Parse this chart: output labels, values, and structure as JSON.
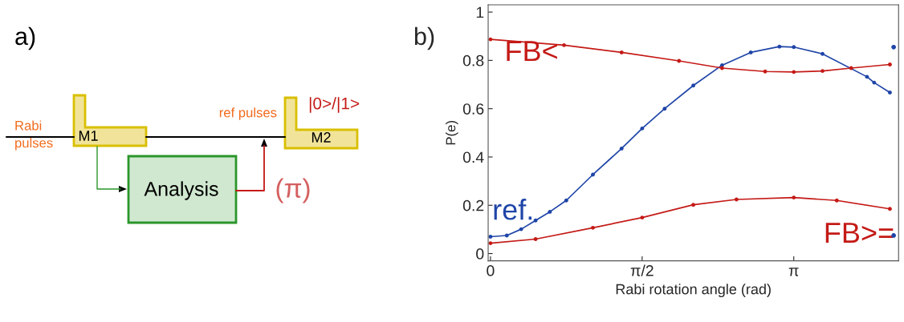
{
  "chart_data": [
    {
      "type": "other",
      "annotations": [
        "a)",
        "Rabi\npulses",
        "M1",
        "ref pulses",
        "M2",
        "|0>/|1>",
        "Analysis",
        "(π)"
      ]
    },
    {
      "type": "line",
      "annotations": [
        "b)"
      ],
      "xlabel": "Rabi rotation angle (rad)",
      "ylabel": "P(e)",
      "xlim": [
        -0.024,
        4.227
      ],
      "ylim": [
        -0.03,
        1.03
      ],
      "xticks": [
        0,
        {
          "value": 1.5708,
          "label": "π/2"
        },
        {
          "value": 3.1416,
          "label": "π"
        }
      ],
      "yticks": [
        0,
        0.2,
        0.4,
        0.6,
        0.8,
        1
      ],
      "grid": false,
      "marker": "circle",
      "line_style": "solid",
      "series": [
        {
          "name": "ref.",
          "color": "#1f45a8",
          "x": [
            0,
            0.169,
            0.318,
            0.467,
            0.615,
            0.785,
            1.061,
            1.358,
            1.571,
            1.804,
            2.101,
            2.399,
            2.696,
            2.993,
            3.142,
            3.439,
            3.9,
            3.974,
            4.137
          ],
          "values": [
            0.07,
            0.075,
            0.101,
            0.137,
            0.173,
            0.22,
            0.327,
            0.435,
            0.518,
            0.6,
            0.696,
            0.78,
            0.833,
            0.857,
            0.855,
            0.827,
            0.732,
            0.708,
            0.667
          ]
        },
        {
          "name": "FB<",
          "color": "#c41a16",
          "x": [
            0,
            0.762,
            1.358,
            1.953,
            2.399,
            2.845,
            3.142,
            3.439,
            3.736,
            4.137
          ],
          "values": [
            0.887,
            0.863,
            0.833,
            0.798,
            0.768,
            0.754,
            0.752,
            0.756,
            0.768,
            0.783
          ]
        },
        {
          "name": "FB>=",
          "color": "#c41a16",
          "x": [
            0,
            0.467,
            1.061,
            1.571,
            2.101,
            2.548,
            3.142,
            3.587,
            4.137
          ],
          "values": [
            0.043,
            0.06,
            0.107,
            0.149,
            0.202,
            0.224,
            0.232,
            0.22,
            0.185
          ]
        },
        {
          "type": "scatter",
          "color": "#1f45a8",
          "x": [
            4.176,
            4.176
          ],
          "values": [
            0.855,
            0.075
          ]
        }
      ]
    }
  ]
}
